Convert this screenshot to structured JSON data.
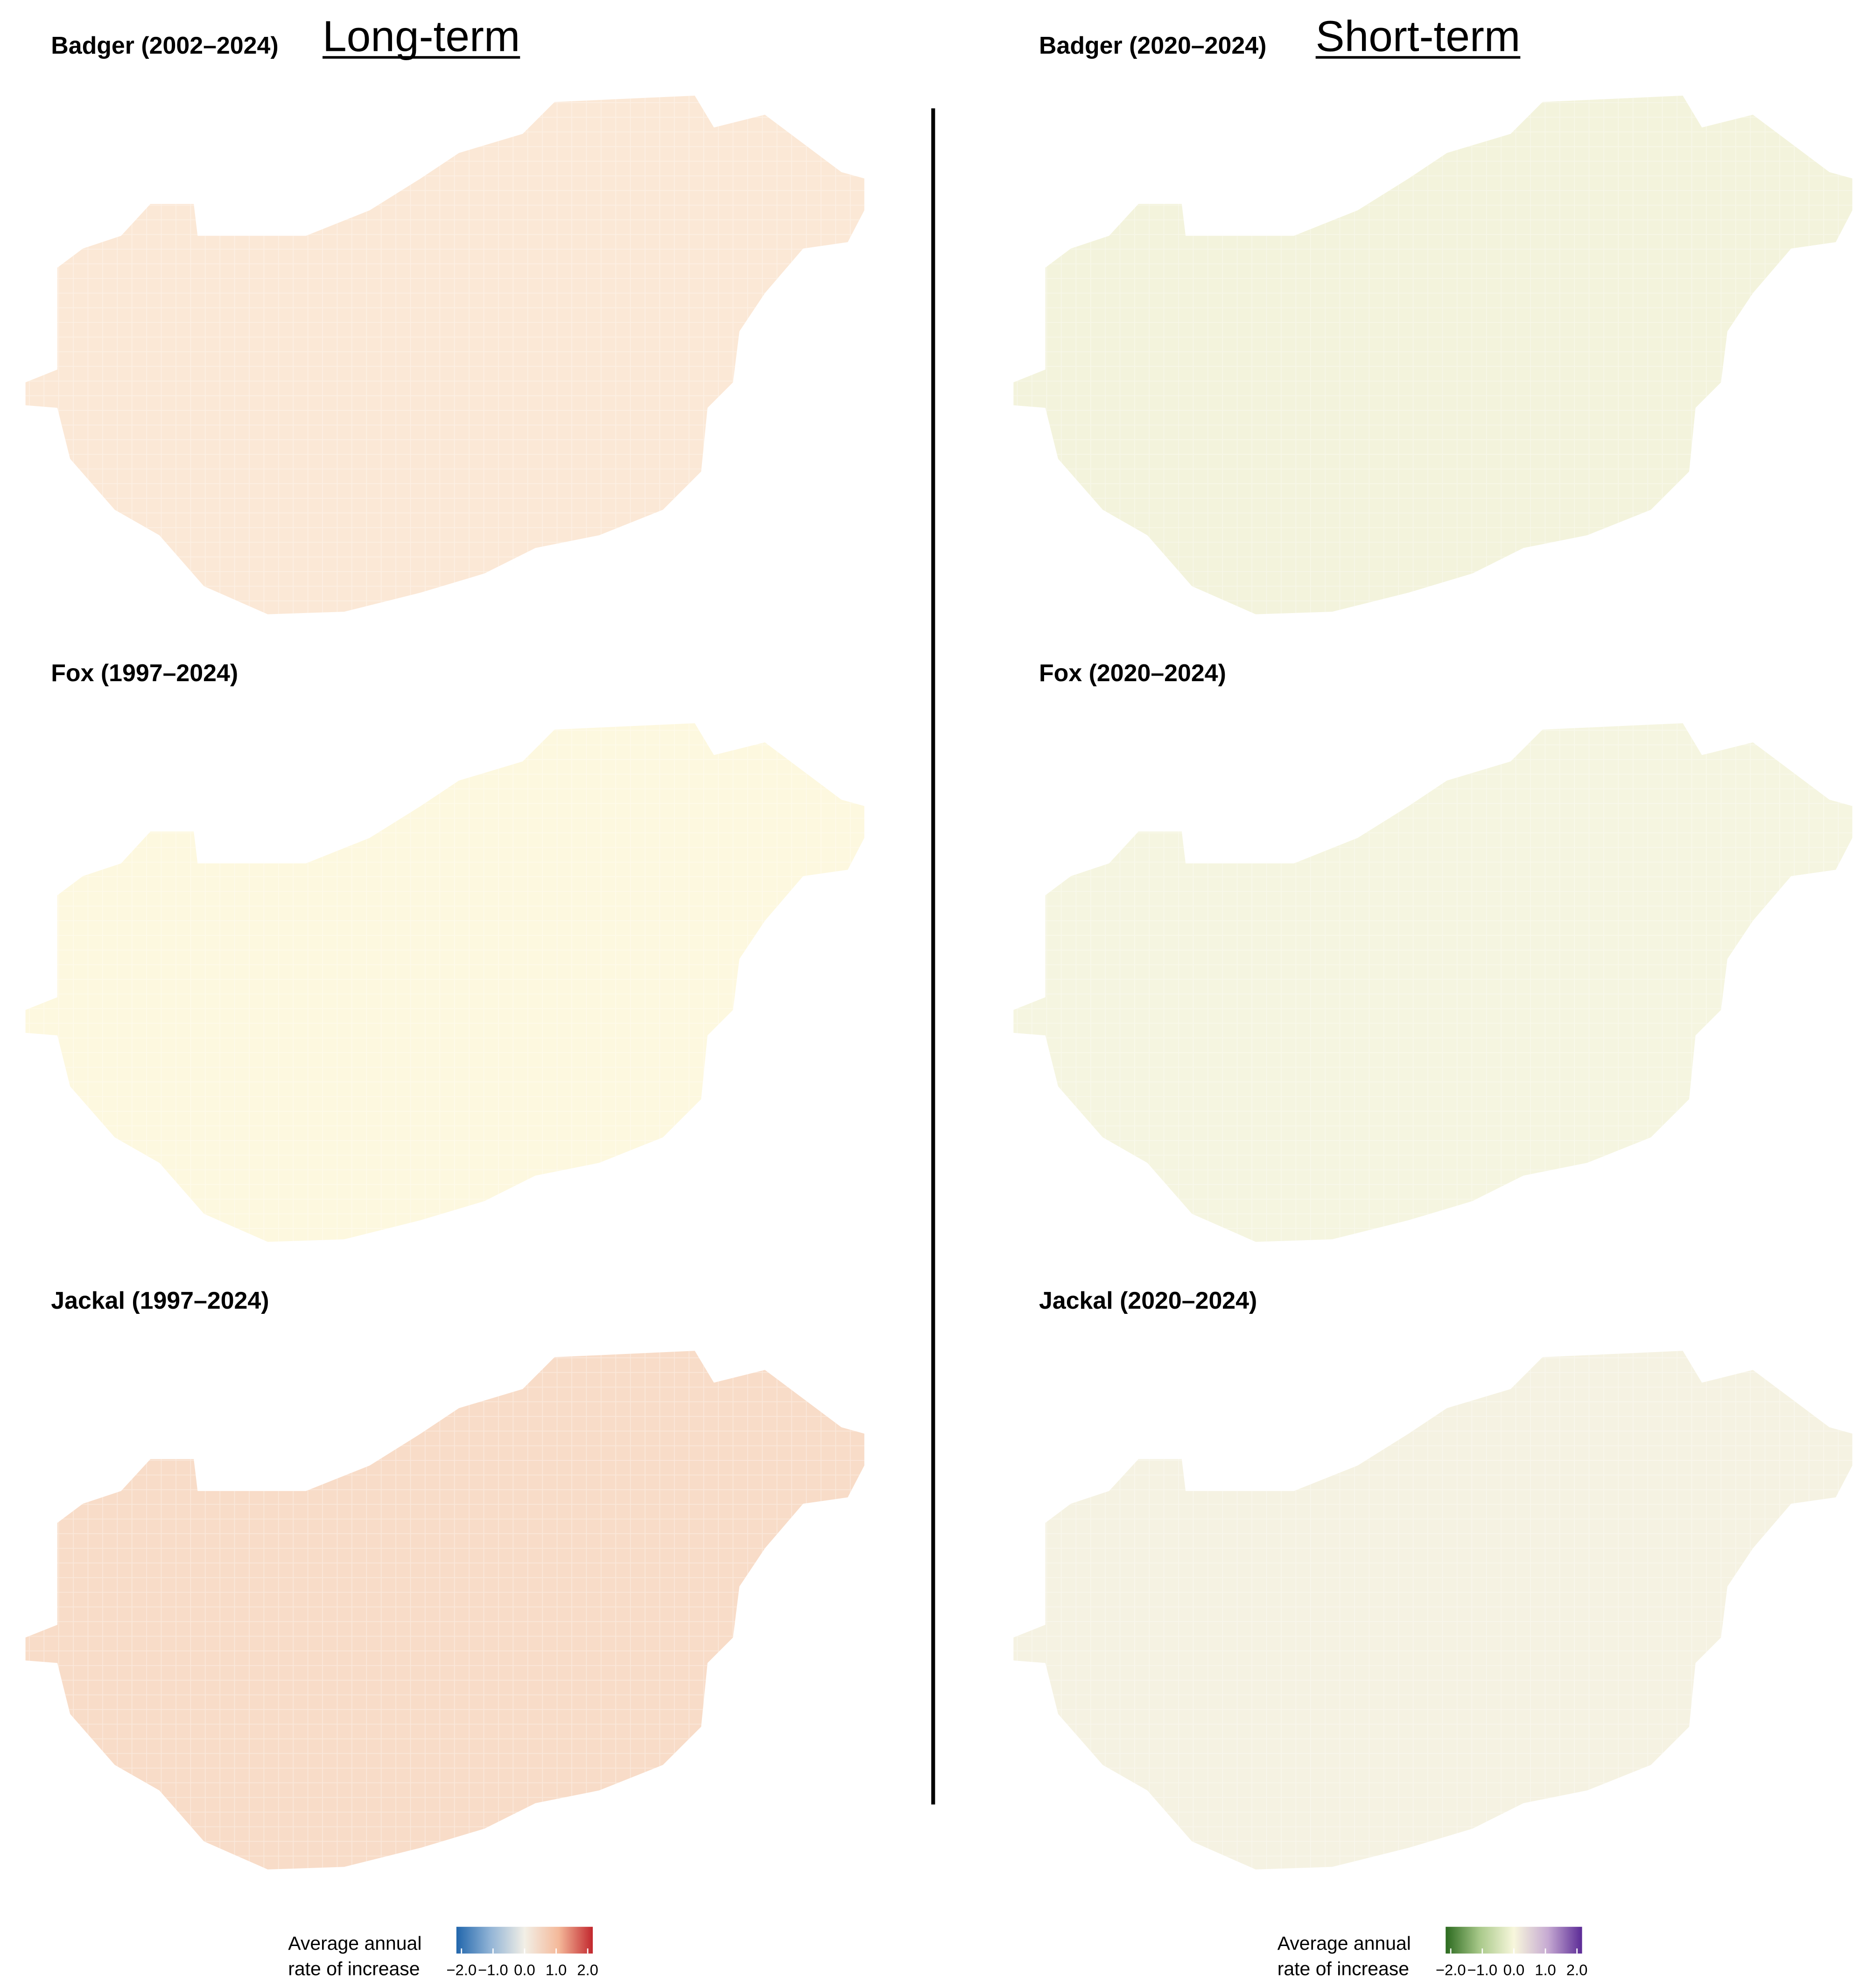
{
  "columns": [
    {
      "heading": "Long-term",
      "legend": {
        "title_lines": [
          "Average annual",
          "rate of increase"
        ],
        "colors": [
          "#2166ac",
          "#92b4d6",
          "#f2efe6",
          "#f4b99a",
          "#c2272d"
        ],
        "ticks": [
          {
            "value": -2,
            "label": "−2.0"
          },
          {
            "value": -1,
            "label": "−1.0"
          },
          {
            "value": 0,
            "label": "0.0"
          },
          {
            "value": 1,
            "label": "1.0"
          },
          {
            "value": 2,
            "label": "2.0"
          }
        ]
      }
    },
    {
      "heading": "Short-term",
      "legend": {
        "title_lines": [
          "Average annual",
          "rate of increase"
        ],
        "colors": [
          "#2b6a1f",
          "#a9c98a",
          "#f8f7dc",
          "#c6aad2",
          "#5b2a96"
        ],
        "ticks": [
          {
            "value": -2,
            "label": "−2.0"
          },
          {
            "value": -1,
            "label": "−1.0"
          },
          {
            "value": 0,
            "label": "0.0"
          },
          {
            "value": 1,
            "label": "1.0"
          },
          {
            "value": 2,
            "label": "2.0"
          }
        ]
      }
    }
  ],
  "panels": [
    {
      "title": "Badger (2002–2024)"
    },
    {
      "title": "Badger (2020–2024)"
    },
    {
      "title": "Fox (1997–2024)"
    },
    {
      "title": "Fox (2020–2024)"
    },
    {
      "title": "Jackal (1997–2024)"
    },
    {
      "title": "Jackal (2020–2024)"
    }
  ]
}
